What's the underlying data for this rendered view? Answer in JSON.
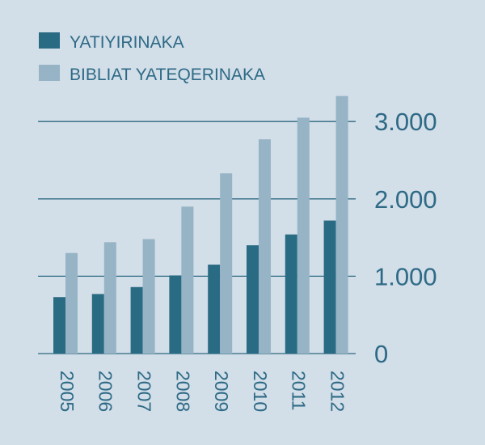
{
  "colors": {
    "background": "#d2dee8",
    "series1": "#2a6b84",
    "series2": "#96b4c6",
    "text": "#2e6a86",
    "grid": "#2f6a82"
  },
  "chart_data": {
    "type": "bar",
    "categories": [
      "2005",
      "2006",
      "2007",
      "2008",
      "2009",
      "2010",
      "2011",
      "2012"
    ],
    "series": [
      {
        "name": "YATIYIRINAKA",
        "values": [
          730,
          770,
          860,
          1010,
          1150,
          1400,
          1540,
          1720
        ]
      },
      {
        "name": "BIBLIAT YATEQERINAKA",
        "values": [
          1300,
          1440,
          1480,
          1900,
          2330,
          2770,
          3050,
          3330
        ]
      }
    ],
    "ylim": [
      0,
      3000
    ],
    "yticks": [
      0,
      1000,
      2000,
      3000
    ],
    "ytick_labels": [
      "0",
      "1.000",
      "2.000",
      "3.000"
    ],
    "grid": true,
    "y_axis_position": "right",
    "legend_position": "top-left",
    "xtick_rotation": "vertical"
  }
}
